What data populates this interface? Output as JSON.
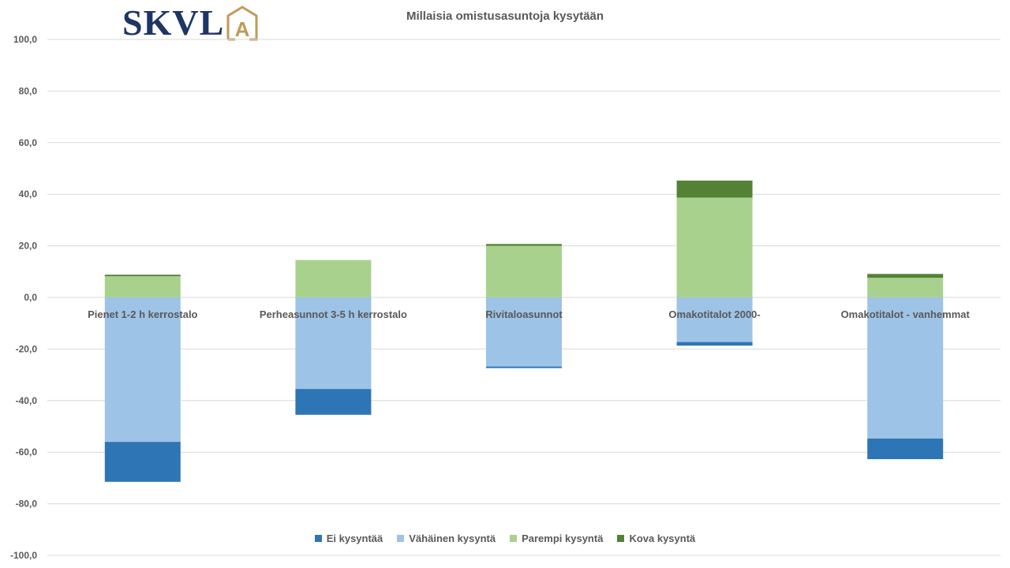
{
  "logo": {
    "text": "SKVL",
    "mark": "A"
  },
  "chart_data": {
    "type": "bar",
    "stacked": true,
    "title": "Millaisia omistusasuntoja kysytään",
    "categories": [
      "Pienet 1-2 h kerrostalo",
      "Perheasunnot 3-5 h kerrostalo",
      "Rivitaloasunnot",
      "Omakotitalot 2000-",
      "Omakotitalot - vanhemmat"
    ],
    "series": [
      {
        "name": "Ei kysyntää",
        "color": "#2e75b6",
        "values": [
          -15.5,
          -10.0,
          -0.6,
          -1.4,
          -8.0
        ]
      },
      {
        "name": "Vähäinen kysyntä",
        "color": "#9dc3e6",
        "values": [
          -56.0,
          -35.5,
          -26.8,
          -17.3,
          -54.7
        ]
      },
      {
        "name": "Parempi kysyntä",
        "color": "#a9d18e",
        "values": [
          8.2,
          14.5,
          20.0,
          38.7,
          7.6
        ]
      },
      {
        "name": "Kova kysyntä",
        "color": "#548235",
        "values": [
          0.6,
          0.0,
          0.7,
          6.6,
          1.5
        ]
      }
    ],
    "ylim": [
      -100,
      100
    ],
    "yticks": [
      "100,0",
      "80,0",
      "60,0",
      "40,0",
      "20,0",
      "0,0",
      "-20,0",
      "-40,0",
      "-60,0",
      "-80,0",
      "-100,0"
    ],
    "ytick_values": [
      100,
      80,
      60,
      40,
      20,
      0,
      -20,
      -40,
      -60,
      -80,
      -100
    ],
    "xlabel": "",
    "ylabel": "",
    "grid": true,
    "legend_position": "bottom"
  }
}
